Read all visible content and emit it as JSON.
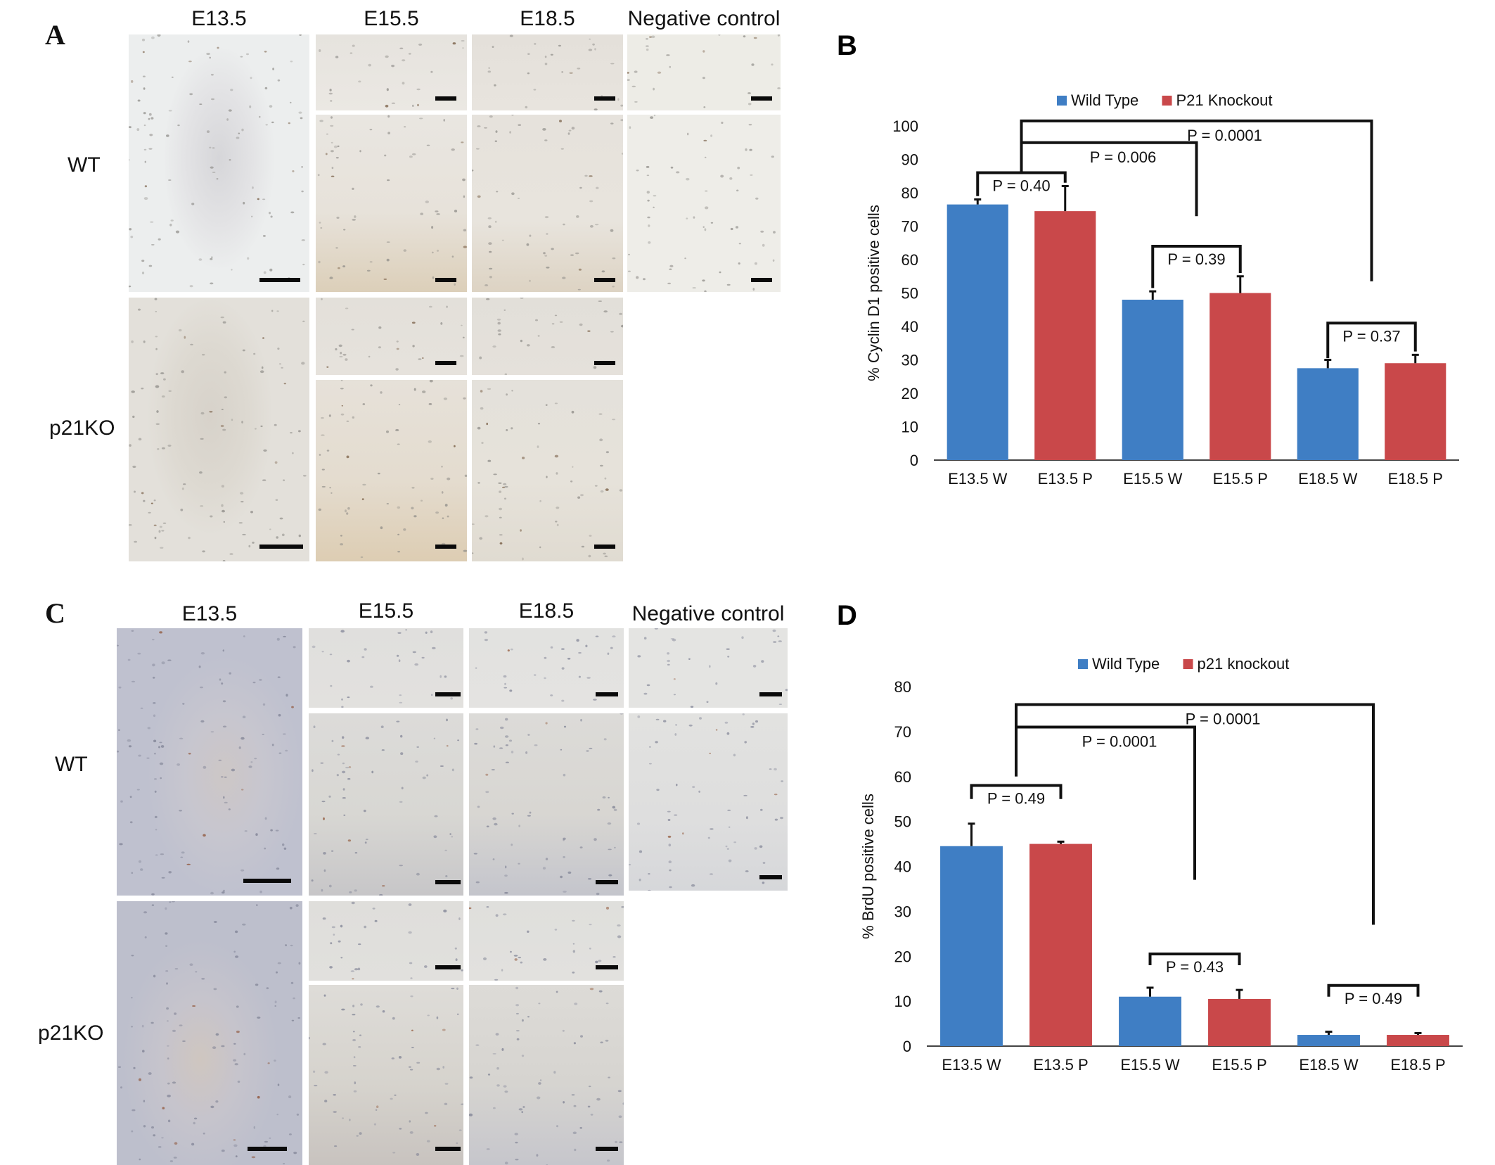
{
  "panels": {
    "A": {
      "letter": "A",
      "col_headers": [
        "E13.5",
        "E15.5",
        "E18.5",
        "Negative control"
      ],
      "row_headers": [
        "WT",
        "p21KO"
      ]
    },
    "C": {
      "letter": "C",
      "col_headers": [
        "E13.5",
        "E15.5",
        "E18.5",
        "Negative control"
      ],
      "row_headers": [
        "WT",
        "p21KO"
      ]
    }
  },
  "colors": {
    "wild_type": "#3f7ec4",
    "knockout": "#c9484a",
    "tissue_light": "#ece8e0",
    "tissue_brown": "#d9cbb4",
    "tissue_blue": "#c9c9d2"
  },
  "chart_data": [
    {
      "panel_letter": "B",
      "type": "bar",
      "ylabel": "% Cyclin D1 positive cells",
      "ylim": [
        0,
        100
      ],
      "yticks": [
        0,
        10,
        20,
        30,
        40,
        50,
        60,
        70,
        80,
        90,
        100
      ],
      "categories": [
        "E13.5 W",
        "E13.5 P",
        "E15.5 W",
        "E15.5 P",
        "E18.5 W",
        "E18.5 P"
      ],
      "legend": [
        "Wild Type",
        "P21 Knockout"
      ],
      "legend_position": "top",
      "values": [
        76.5,
        74.5,
        48,
        50,
        27.5,
        29
      ],
      "errors": [
        1.5,
        7.5,
        2.5,
        5,
        2.5,
        2.5
      ],
      "series_of_bar": [
        0,
        1,
        0,
        1,
        0,
        1
      ],
      "grid": false,
      "annotations": [
        {
          "text": "P = 0.40",
          "from": 0,
          "to": 1,
          "level": 86,
          "drop_to": [
            79,
            83
          ]
        },
        {
          "text": "P = 0.39",
          "from": 2,
          "to": 3,
          "level": 64,
          "drop_to": [
            51.5,
            56
          ]
        },
        {
          "text": "P = 0.37",
          "from": 4,
          "to": 5,
          "level": 41,
          "drop_to": [
            30.5,
            32.5
          ]
        },
        {
          "text": "P = 0.006",
          "from": 0.5,
          "to": 2.5,
          "level": 95,
          "drop_to": [
            86,
            73
          ]
        },
        {
          "text": "P = 0.0001",
          "from": 0.5,
          "to": 4.5,
          "level": 101.5,
          "drop_to": [
            95,
            53.5
          ]
        }
      ]
    },
    {
      "panel_letter": "D",
      "type": "bar",
      "ylabel": "% BrdU positive cells",
      "ylim": [
        0,
        80
      ],
      "yticks": [
        0,
        10,
        20,
        30,
        40,
        50,
        60,
        70,
        80
      ],
      "categories": [
        "E13.5 W",
        "E13.5 P",
        "E15.5 W",
        "E15.5 P",
        "E18.5 W",
        "E18.5 P"
      ],
      "legend": [
        "Wild Type",
        "p21 knockout"
      ],
      "legend_position": "top",
      "values": [
        44.5,
        45,
        11,
        10.5,
        2.5,
        2.5
      ],
      "errors": [
        5,
        0.5,
        2,
        2,
        0.7,
        0.4
      ],
      "series_of_bar": [
        0,
        1,
        0,
        1,
        0,
        1
      ],
      "grid": false,
      "annotations": [
        {
          "text": "P = 0.49",
          "from": 0,
          "to": 1,
          "level": 58,
          "drop_to": [
            55,
            55
          ]
        },
        {
          "text": "P = 0.43",
          "from": 2,
          "to": 3,
          "level": 20.5,
          "drop_to": [
            18,
            18
          ]
        },
        {
          "text": "P = 0.49",
          "from": 4,
          "to": 5,
          "level": 13.5,
          "drop_to": [
            11,
            11
          ]
        },
        {
          "text": "P = 0.0001",
          "from": 0.5,
          "to": 2.5,
          "level": 71,
          "drop_to": [
            60,
            37
          ]
        },
        {
          "text": "P = 0.0001",
          "from": 0.5,
          "to": 4.5,
          "level": 76,
          "drop_to": [
            71,
            27
          ]
        }
      ]
    }
  ]
}
